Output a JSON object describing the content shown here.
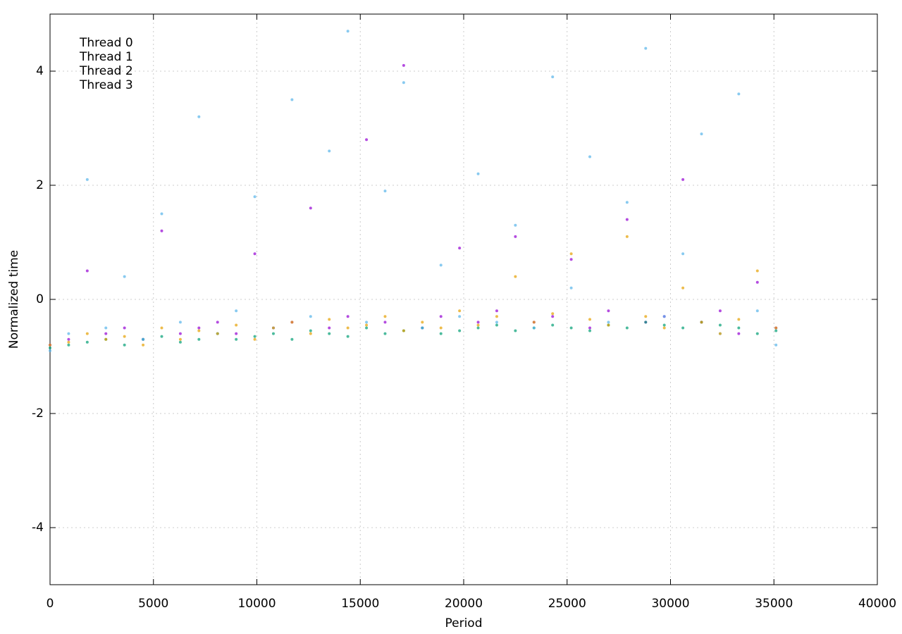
{
  "chart_data": {
    "type": "scatter",
    "x_label": "Period",
    "y_label": "Normalized time",
    "xlim": [
      0,
      40000
    ],
    "ylim": [
      -5,
      5
    ],
    "xticks": [
      0,
      5000,
      10000,
      15000,
      20000,
      25000,
      30000,
      35000,
      40000
    ],
    "yticks": [
      -4,
      -2,
      0,
      2,
      4
    ],
    "grid": true,
    "legend": "upper-left",
    "x": [
      0,
      900,
      1800,
      2700,
      3600,
      4500,
      5400,
      6300,
      7200,
      8100,
      9000,
      9900,
      10800,
      11700,
      12600,
      13500,
      14400,
      15300,
      16200,
      17100,
      18000,
      18900,
      19800,
      20700,
      21600,
      22500,
      23400,
      24300,
      25200,
      26100,
      27000,
      27900,
      28800,
      29700,
      30600,
      31500,
      32400,
      33300,
      34200,
      35100
    ],
    "series": [
      {
        "name": "Thread 0",
        "color": "#9400d3",
        "values": [
          -0.8,
          -0.7,
          0.5,
          -0.6,
          -0.5,
          -0.7,
          1.2,
          -0.6,
          -0.5,
          -0.4,
          -0.6,
          0.8,
          -0.5,
          -0.4,
          1.6,
          -0.5,
          -0.3,
          2.8,
          -0.4,
          4.1,
          -0.5,
          -0.3,
          0.9,
          -0.4,
          -0.2,
          1.1,
          -0.4,
          -0.3,
          0.7,
          -0.5,
          -0.2,
          1.4,
          -0.4,
          -0.3,
          2.1,
          -0.4,
          -0.2,
          -0.6,
          0.3,
          -0.5
        ]
      },
      {
        "name": "Thread 1",
        "color": "#009e73",
        "values": [
          -0.85,
          -0.8,
          -0.75,
          -0.7,
          -0.8,
          -0.7,
          -0.65,
          -0.75,
          -0.7,
          -0.6,
          -0.7,
          -0.65,
          -0.6,
          -0.7,
          -0.55,
          -0.6,
          -0.65,
          -0.5,
          -0.6,
          -0.55,
          -0.5,
          -0.6,
          -0.55,
          -0.5,
          -0.45,
          -0.55,
          -0.5,
          -0.45,
          -0.5,
          -0.55,
          -0.45,
          -0.5,
          -0.4,
          -0.45,
          -0.5,
          -0.4,
          -0.45,
          -0.5,
          -0.6,
          -0.55
        ]
      },
      {
        "name": "Thread 2",
        "color": "#56b4e9",
        "values": [
          -0.9,
          -0.6,
          2.1,
          -0.5,
          0.4,
          -0.7,
          1.5,
          -0.4,
          3.2,
          -0.6,
          -0.2,
          1.8,
          -0.5,
          3.5,
          -0.3,
          2.6,
          4.7,
          -0.4,
          1.9,
          3.8,
          -0.5,
          0.6,
          -0.3,
          2.2,
          -0.4,
          1.3,
          -0.5,
          3.9,
          0.2,
          2.5,
          -0.4,
          1.7,
          4.4,
          -0.3,
          0.8,
          2.9,
          -0.6,
          3.6,
          -0.2,
          -0.8
        ]
      },
      {
        "name": "Thread 3",
        "color": "#e69f00",
        "values": [
          -0.8,
          -0.75,
          -0.6,
          -0.7,
          -0.65,
          -0.8,
          -0.5,
          -0.7,
          -0.55,
          -0.6,
          -0.45,
          -0.7,
          -0.5,
          -0.4,
          -0.6,
          -0.35,
          -0.5,
          -0.45,
          -0.3,
          -0.55,
          -0.4,
          -0.5,
          -0.2,
          -0.45,
          -0.3,
          0.4,
          -0.4,
          -0.25,
          0.8,
          -0.35,
          -0.45,
          1.1,
          -0.3,
          -0.5,
          0.2,
          -0.4,
          -0.6,
          -0.35,
          0.5,
          -0.5
        ]
      }
    ]
  }
}
